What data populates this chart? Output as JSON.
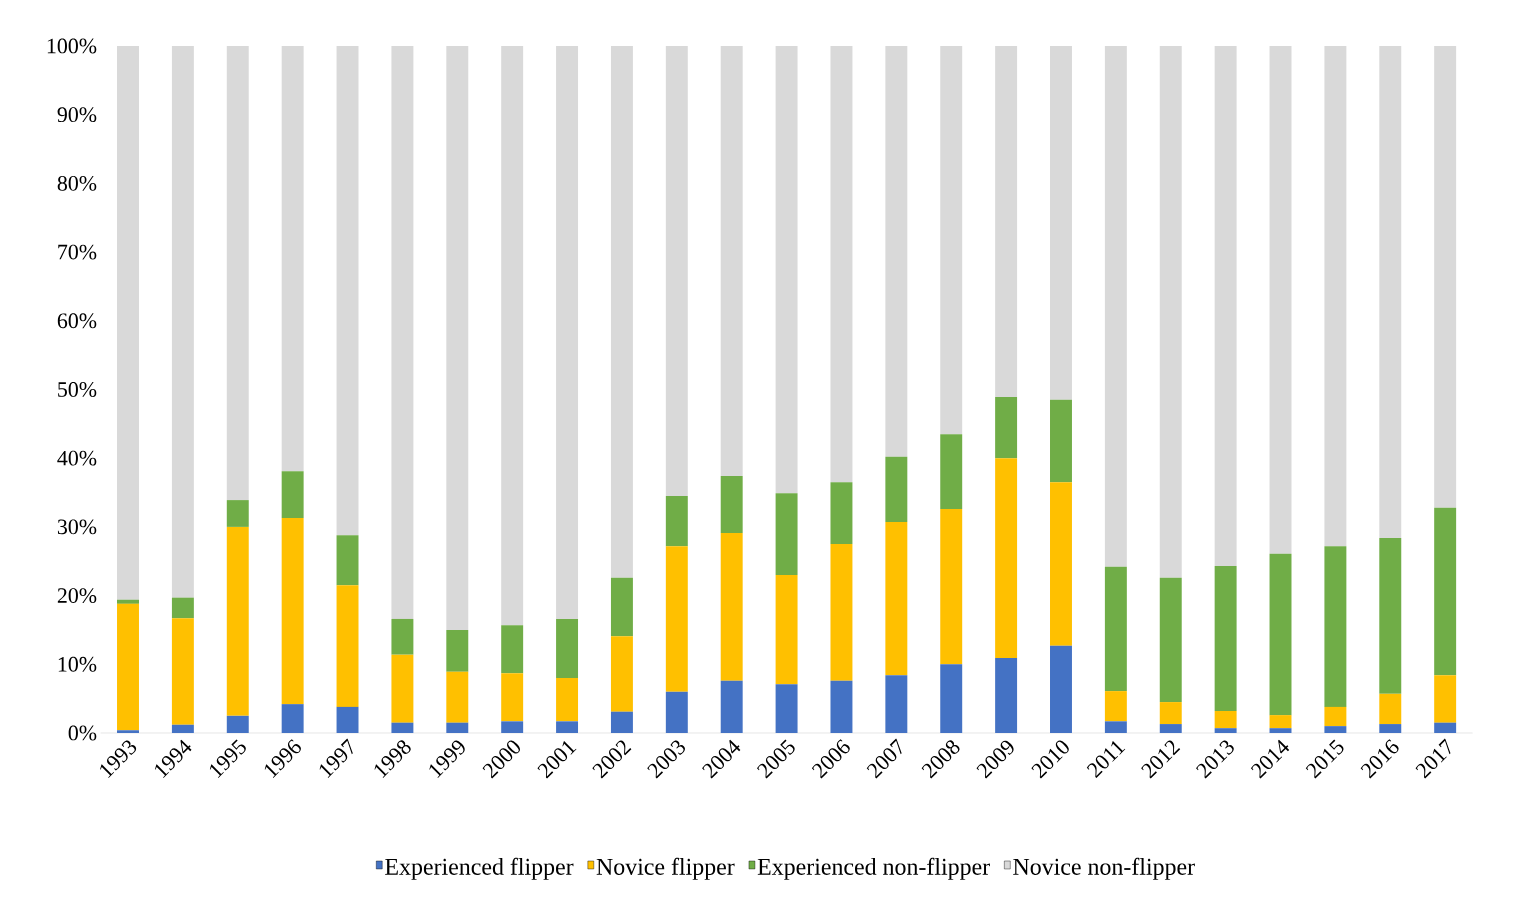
{
  "chart_data": {
    "type": "bar",
    "stacked": true,
    "legend": "bottom",
    "categories": [
      "1993",
      "1994",
      "1995",
      "1996",
      "1997",
      "1998",
      "1999",
      "2000",
      "2001",
      "2002",
      "2003",
      "2004",
      "2005",
      "2006",
      "2007",
      "2008",
      "2009",
      "2010",
      "2011",
      "2012",
      "2013",
      "2014",
      "2015",
      "2016",
      "2017"
    ],
    "ylim": [
      0,
      100
    ],
    "yticks": [
      {
        "value": 0,
        "label": "0%"
      },
      {
        "value": 10,
        "label": "10%"
      },
      {
        "value": 20,
        "label": "20%"
      },
      {
        "value": 30,
        "label": "30%"
      },
      {
        "value": 40,
        "label": "40%"
      },
      {
        "value": 50,
        "label": "50%"
      },
      {
        "value": 60,
        "label": "60%"
      },
      {
        "value": 70,
        "label": "70%"
      },
      {
        "value": 80,
        "label": "80%"
      },
      {
        "value": 90,
        "label": "90%"
      },
      {
        "value": 100,
        "label": "100%"
      }
    ],
    "series": [
      {
        "name": "Experienced flipper",
        "color": "#4472c4",
        "values": [
          0.4,
          1.2,
          2.5,
          4.2,
          3.8,
          1.5,
          1.5,
          1.7,
          1.7,
          3.1,
          6.0,
          7.6,
          7.1,
          7.6,
          8.4,
          10.0,
          10.9,
          12.7,
          1.7,
          1.3,
          0.7,
          0.7,
          1.0,
          1.3,
          1.5
        ]
      },
      {
        "name": "Novice flipper",
        "color": "#ffc000",
        "values": [
          18.4,
          15.5,
          27.5,
          27.1,
          17.7,
          9.9,
          7.4,
          7.0,
          6.3,
          11.0,
          21.2,
          21.5,
          15.9,
          19.9,
          22.3,
          22.6,
          29.1,
          23.8,
          4.4,
          3.2,
          2.5,
          1.9,
          2.8,
          4.4,
          6.9
        ]
      },
      {
        "name": "Experienced non-flipper",
        "color": "#70ad47",
        "values": [
          0.6,
          3.0,
          3.9,
          6.8,
          7.3,
          5.2,
          6.1,
          7.0,
          8.6,
          8.5,
          7.3,
          8.3,
          11.9,
          9.0,
          9.5,
          10.9,
          8.9,
          12.0,
          18.1,
          18.1,
          21.1,
          23.5,
          23.4,
          22.7,
          24.4
        ]
      },
      {
        "name": "Novice non-flipper",
        "color": "#d9d9d9",
        "values": [
          80.6,
          80.3,
          66.1,
          61.9,
          71.2,
          83.4,
          85.0,
          84.3,
          83.4,
          77.4,
          65.5,
          62.6,
          65.1,
          63.5,
          59.8,
          56.5,
          51.1,
          51.5,
          75.8,
          77.4,
          75.7,
          73.9,
          72.8,
          71.6,
          67.2
        ]
      }
    ]
  }
}
